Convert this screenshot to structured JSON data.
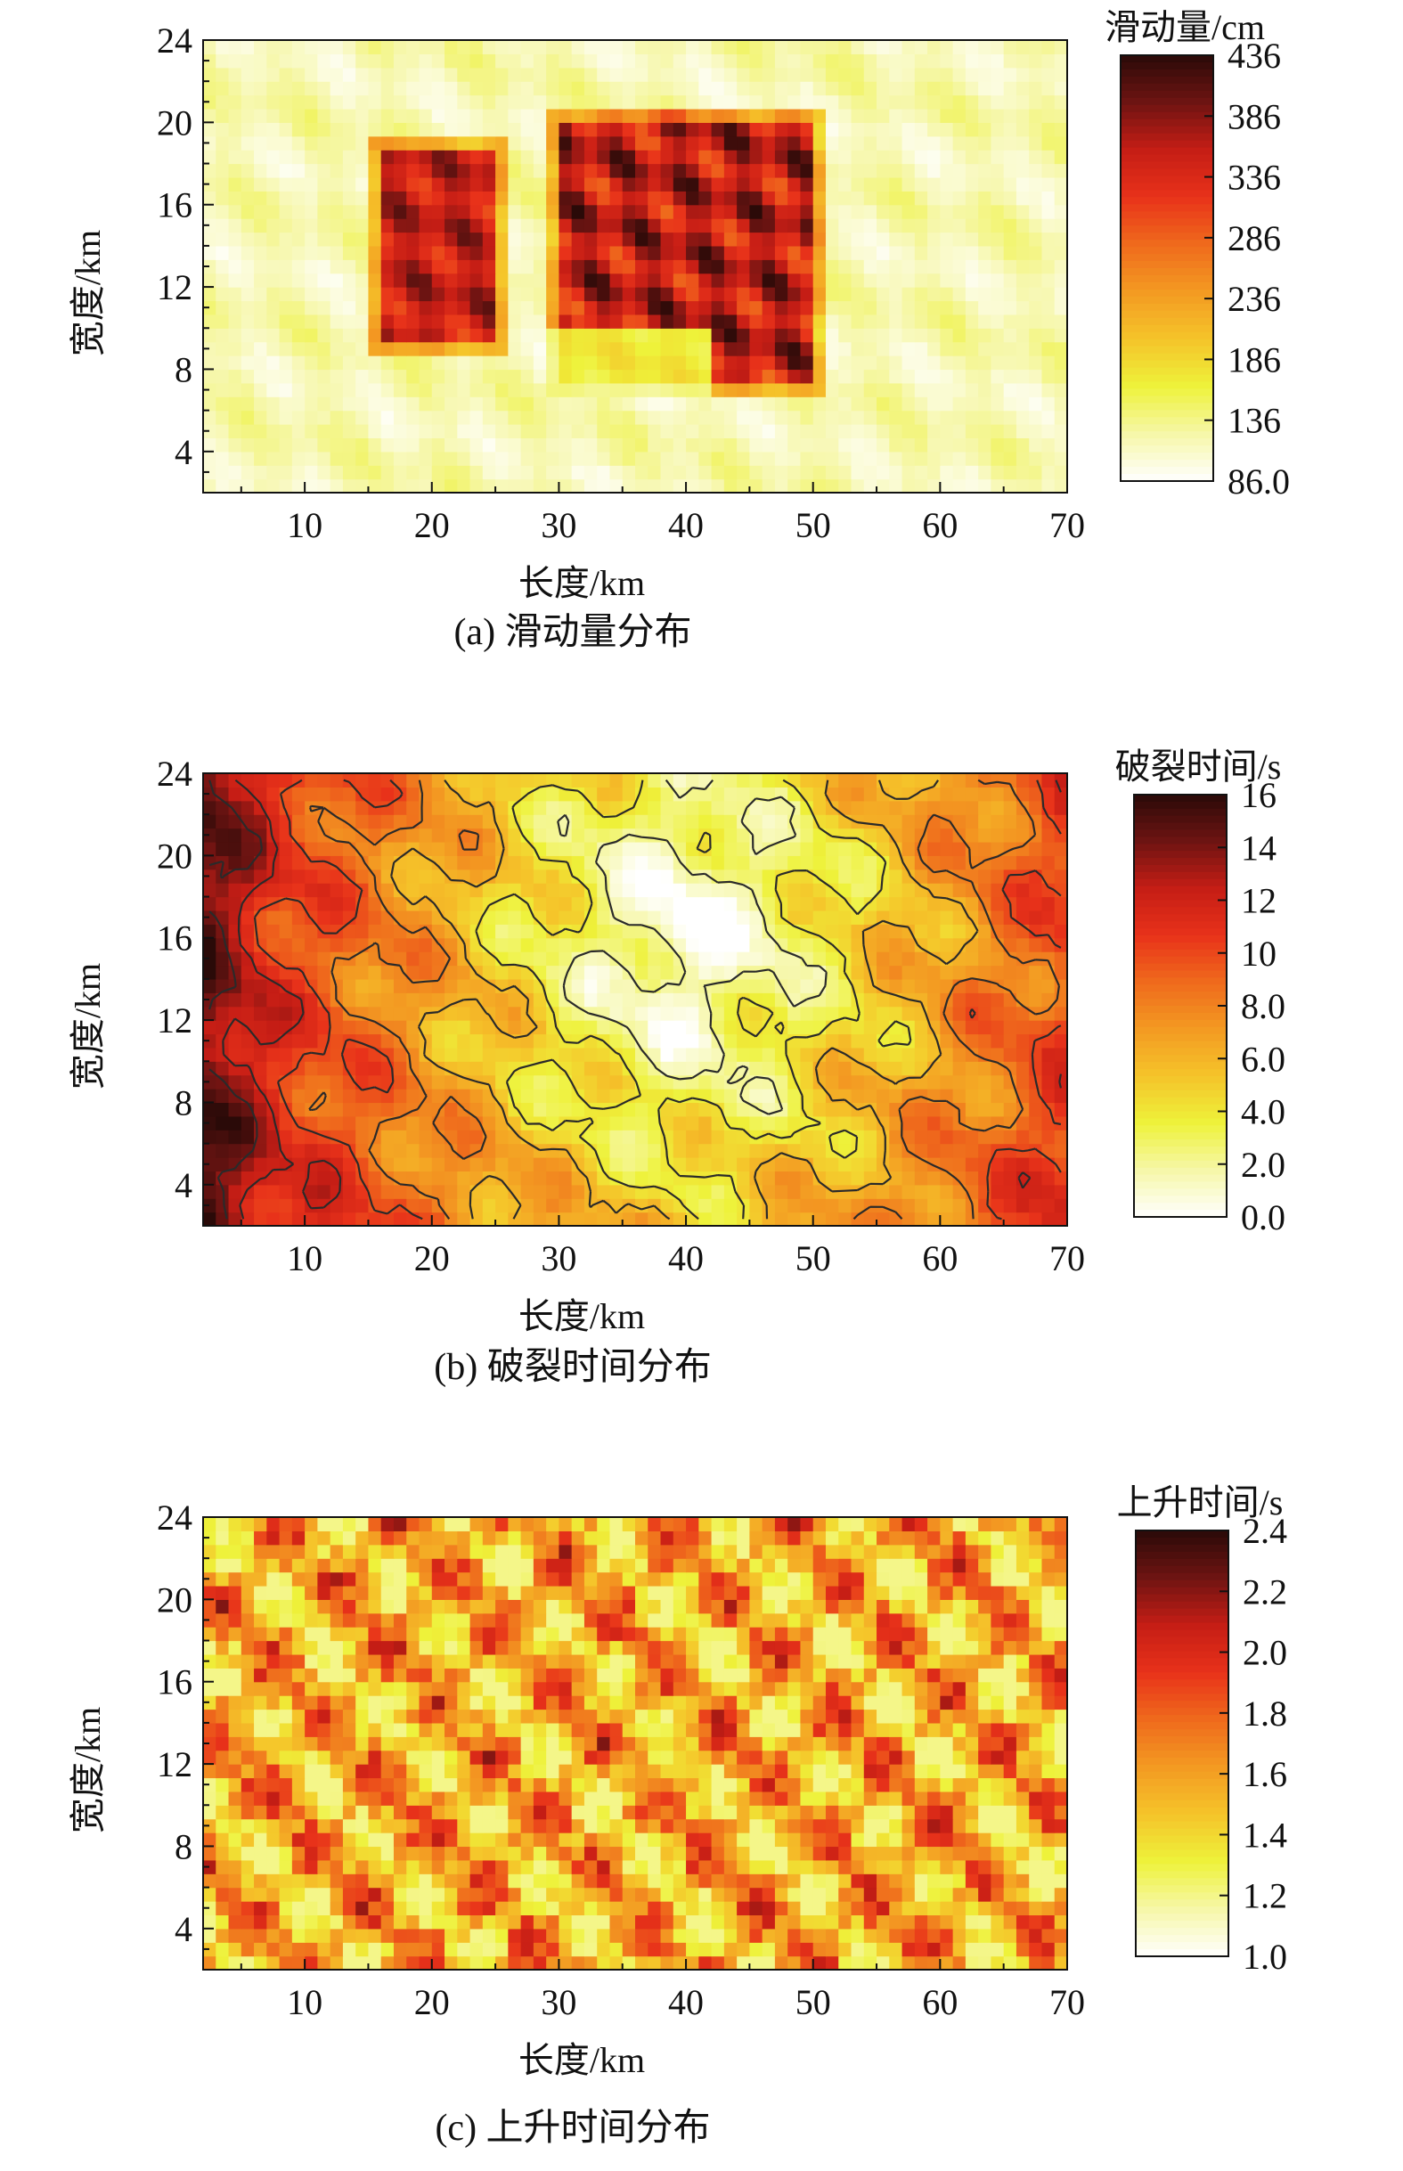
{
  "chart_data": [
    {
      "type": "heatmap",
      "panel": "(a)",
      "caption": "(a) 滑动量分布",
      "xlabel": "长度/km",
      "ylabel": "宽度/km",
      "xlim": [
        2,
        70
      ],
      "ylim": [
        2,
        24
      ],
      "xticks": [
        "10",
        "20",
        "30",
        "40",
        "50",
        "60",
        "70"
      ],
      "yticks": [
        "4",
        "8",
        "12",
        "16",
        "20",
        "24"
      ],
      "colorbar": {
        "title": "滑动量/cm",
        "ticks": [
          "436",
          "386",
          "336",
          "286",
          "236",
          "186",
          "136",
          "86.0"
        ],
        "range": [
          86,
          436
        ]
      },
      "background": {
        "value_range": [
          90,
          150
        ]
      },
      "regions": [
        {
          "name": "left asperity",
          "x": [
            15,
            26
          ],
          "y": [
            8.5,
            19.5
          ],
          "value_range": [
            300,
            410
          ]
        },
        {
          "name": "right asperity",
          "x": [
            29,
            51
          ],
          "y": [
            6.5,
            21
          ],
          "value_range": [
            280,
            436
          ]
        }
      ],
      "contours": false
    },
    {
      "type": "heatmap",
      "panel": "(b)",
      "caption": "(b) 破裂时间分布",
      "xlabel": "长度/km",
      "ylabel": "宽度/km",
      "xlim": [
        2,
        70
      ],
      "ylim": [
        2,
        24
      ],
      "xticks": [
        "10",
        "20",
        "30",
        "40",
        "50",
        "60",
        "70"
      ],
      "yticks": [
        "4",
        "8",
        "12",
        "16",
        "20",
        "24"
      ],
      "colorbar": {
        "title": "破裂时间/s",
        "ticks": [
          "16",
          "14",
          "12",
          "10",
          "8.0",
          "6.0",
          "4.0",
          "2.0",
          "0.0"
        ],
        "range": [
          0,
          16
        ]
      },
      "hypocenter": {
        "x": 40,
        "y": 16,
        "value": 0
      },
      "contour_levels": [
        2,
        4,
        6,
        8,
        10,
        12,
        14
      ],
      "contours": true
    },
    {
      "type": "heatmap",
      "panel": "(c)",
      "caption": "(c) 上升时间分布",
      "xlabel": "长度/km",
      "ylabel": "宽度/km",
      "xlim": [
        2,
        70
      ],
      "ylim": [
        2,
        24
      ],
      "xticks": [
        "10",
        "20",
        "30",
        "40",
        "50",
        "60",
        "70"
      ],
      "yticks": [
        "4",
        "8",
        "12",
        "16",
        "20",
        "24"
      ],
      "colorbar": {
        "title": "上升时间/s",
        "ticks": [
          "2.4",
          "2.2",
          "2.0",
          "1.8",
          "1.6",
          "1.4",
          "1.2",
          "1.0"
        ],
        "range": [
          1.0,
          2.4
        ]
      },
      "value_range": [
        1.2,
        2.4
      ],
      "contours": false
    }
  ],
  "colormap": [
    "#ffffff",
    "#f6f7a8",
    "#eef23a",
    "#f5c42a",
    "#f39a22",
    "#ef6a1c",
    "#e8321a",
    "#c51d15",
    "#6e1412",
    "#2a0a08"
  ]
}
